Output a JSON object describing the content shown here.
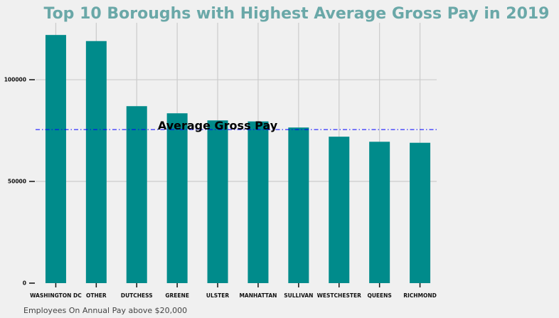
{
  "chart_data": {
    "type": "bar",
    "title": "Top 10 Boroughs with Highest Average Gross Pay in 2019",
    "xlabel": "",
    "ylabel": "",
    "categories": [
      "WASHINGTON DC",
      "OTHER",
      "DUTCHESS",
      "GREENE",
      "ULSTER",
      "MANHATTAN",
      "SULLIVAN",
      "WESTCHESTER",
      "QUEENS",
      "RICHMOND"
    ],
    "values": [
      122000,
      119000,
      87000,
      83500,
      80000,
      79500,
      76500,
      72000,
      69500,
      69000
    ],
    "yticks": [
      0,
      50000,
      100000
    ],
    "ytick_labels": [
      "0",
      "50000",
      "100000"
    ],
    "ylim": [
      0,
      128000
    ],
    "grid": true,
    "reference_line": {
      "label": "Average Gross Pay",
      "value": 75500,
      "style": "dash-dot",
      "color": "#0000ff"
    },
    "colors": {
      "bar": "#008b8b",
      "title": "#6aa8a8",
      "grid": "#cbcbcb",
      "background": "#f0f0f0"
    }
  },
  "footnote": "Employees On Annual Pay above $20,000"
}
